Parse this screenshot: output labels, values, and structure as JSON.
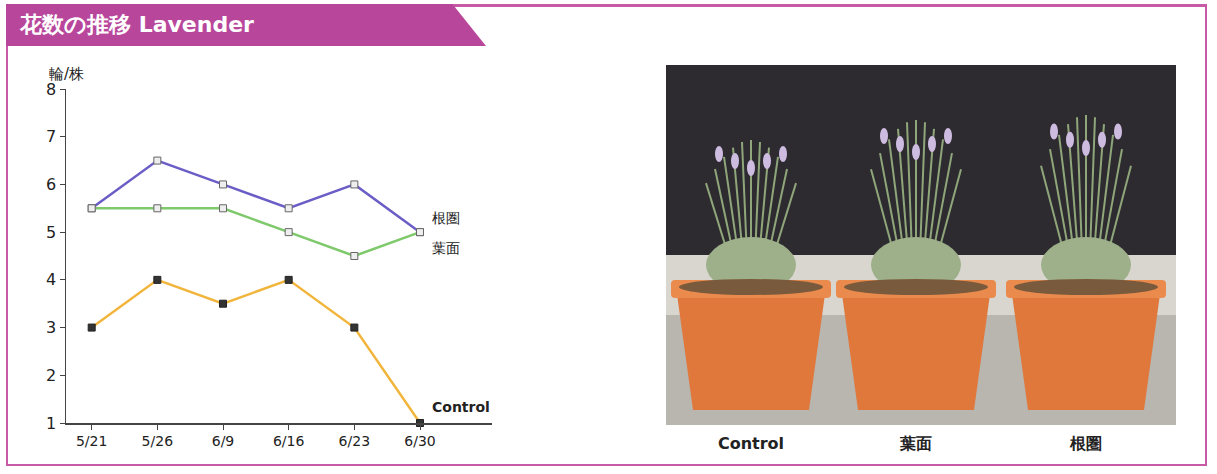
{
  "chart_data": {
    "type": "line",
    "title": "花数の推移 Lavender",
    "y_label": "輪/株",
    "categories": [
      "5/21",
      "5/26",
      "6/9",
      "6/16",
      "6/23",
      "6/30"
    ],
    "series": [
      {
        "name": "根圏",
        "color": "#6a5ec6",
        "marker": "square-open",
        "values": [
          5.5,
          6.5,
          6.0,
          5.5,
          6.0,
          5.0
        ]
      },
      {
        "name": "葉面",
        "color": "#7ec96b",
        "marker": "square-open",
        "values": [
          5.5,
          5.5,
          5.5,
          5.0,
          4.5,
          5.0
        ]
      },
      {
        "name": "Control",
        "color": "#f2b53c",
        "marker": "square",
        "values": [
          3,
          4,
          3.5,
          4,
          3,
          1
        ]
      }
    ],
    "ylim": [
      1,
      8
    ],
    "yticks": [
      1,
      2,
      3,
      4,
      5,
      6,
      7,
      8
    ],
    "grid": false,
    "legend": false
  },
  "photo": {
    "labels": [
      "Control",
      "葉面",
      "根圏"
    ]
  }
}
